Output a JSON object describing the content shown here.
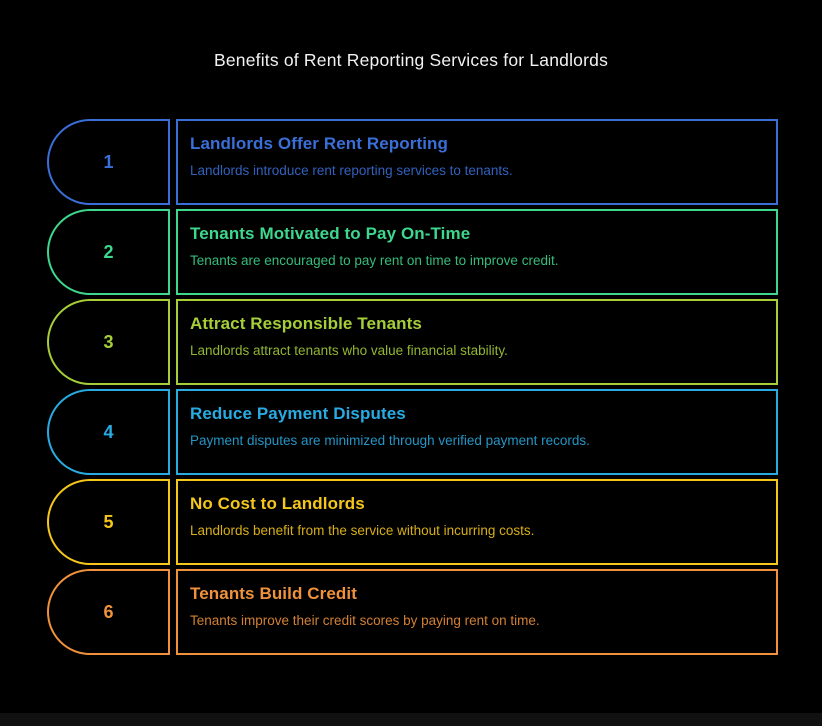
{
  "page": {
    "title": "Benefits of Rent Reporting Services for Landlords",
    "background": "#000000",
    "title_color": "#f2f2f2"
  },
  "items": [
    {
      "number": "1",
      "color": "#3A6FD8",
      "title": "Landlords Offer Rent Reporting",
      "description": "Landlords introduce rent reporting services to tenants."
    },
    {
      "number": "2",
      "color": "#3DD78D",
      "title": "Tenants Motivated to Pay On-Time",
      "description": "Tenants are encouraged to pay rent on time to improve credit."
    },
    {
      "number": "3",
      "color": "#A6CE39",
      "title": "Attract Responsible Tenants",
      "description": "Landlords attract tenants who value financial stability."
    },
    {
      "number": "4",
      "color": "#29ABE2",
      "title": "Reduce Payment Disputes",
      "description": "Payment disputes are minimized through verified payment records."
    },
    {
      "number": "5",
      "color": "#F5C71C",
      "title": "No Cost to Landlords",
      "description": "Landlords benefit from the service without incurring costs."
    },
    {
      "number": "6",
      "color": "#F0923B",
      "title": "Tenants Build Credit",
      "description": "Tenants improve their credit scores by paying rent on time."
    }
  ],
  "footer": {
    "bar_color": "#111111"
  }
}
